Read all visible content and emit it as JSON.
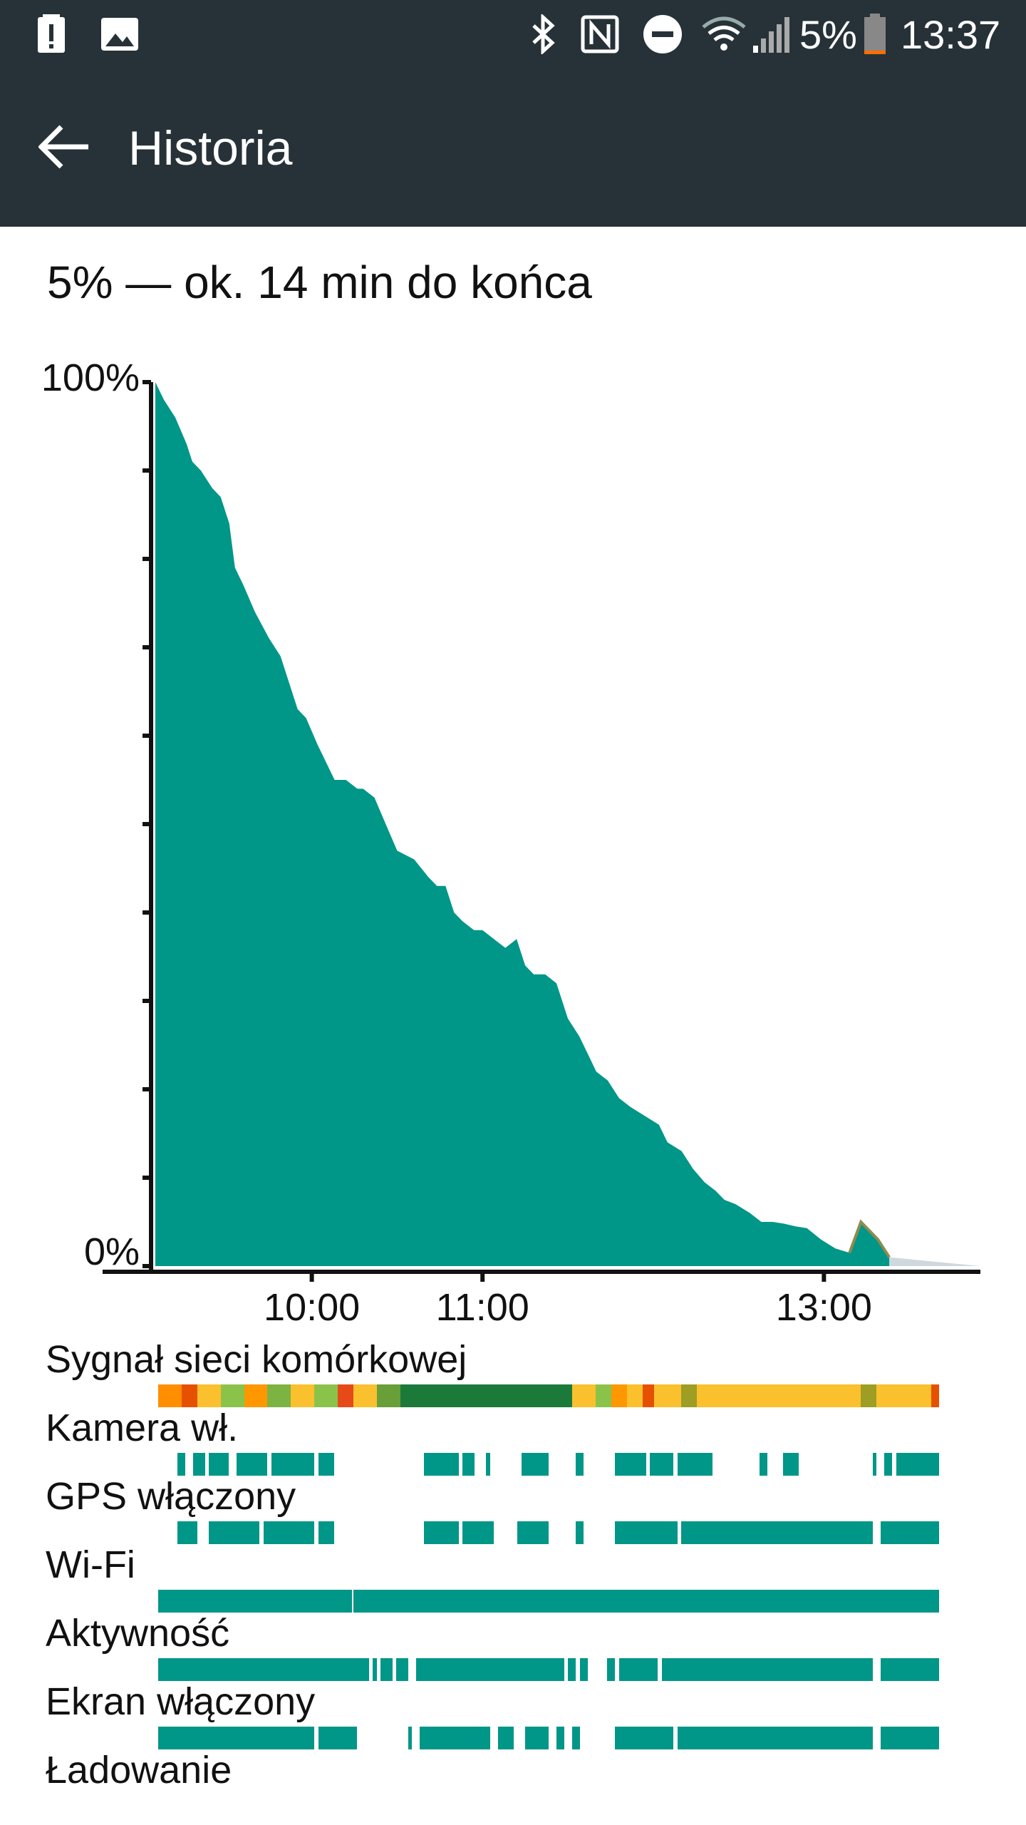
{
  "status_bar": {
    "icons": [
      "alert-icon",
      "image-icon",
      "bluetooth-icon",
      "nfc-icon",
      "do-not-disturb-icon",
      "wifi-icon",
      "cell-signal-icon",
      "battery-icon"
    ],
    "battery_percent": "5%",
    "time": "13:37"
  },
  "app_bar": {
    "title": "Historia",
    "back_icon": "arrow-back-icon",
    "background": "#263238"
  },
  "summary": "5% — ok. 14 min do końca",
  "chart_data": {
    "type": "area",
    "title": "",
    "ylabel": "",
    "xlabel": "",
    "ylim": [
      0,
      100
    ],
    "y_tick_labels": [
      "0%",
      "100%"
    ],
    "x_tick_labels": [
      "10:00",
      "11:00",
      "13:00"
    ],
    "xlim": [
      "09:05",
      "13:55"
    ],
    "series": [
      {
        "x": [
          "09:05",
          "09:08",
          "09:12",
          "09:16",
          "09:18",
          "09:21",
          "09:25",
          "09:28",
          "09:31",
          "09:33",
          "09:36",
          "09:40",
          "09:45",
          "09:49",
          "09:52",
          "09:55",
          "09:58",
          "10:02",
          "10:05",
          "10:08",
          "10:12",
          "10:16",
          "10:18",
          "10:22",
          "10:26",
          "10:30",
          "10:36",
          "10:41",
          "10:44",
          "10:47",
          "10:50",
          "10:53",
          "10:57",
          "11:00",
          "11:04",
          "11:08",
          "11:12",
          "11:15",
          "11:18",
          "11:22",
          "11:26",
          "11:30",
          "11:34",
          "11:37",
          "11:40",
          "11:44",
          "11:48",
          "11:52",
          "11:57",
          "12:02",
          "12:05",
          "12:10",
          "12:14",
          "12:18",
          "12:22",
          "12:25",
          "12:29",
          "12:34",
          "12:38",
          "12:42",
          "12:46",
          "12:50",
          "12:54",
          "12:59",
          "13:04",
          "13:09",
          "13:13",
          "13:16",
          "13:19",
          "13:21",
          "13:23"
        ],
        "y": [
          100,
          98,
          96,
          93,
          91,
          90,
          88,
          87,
          84,
          79,
          77,
          74,
          71,
          69,
          66,
          63,
          62,
          59,
          57,
          55,
          55,
          54,
          54,
          53,
          50,
          47,
          46,
          44,
          43,
          43,
          40,
          39,
          38,
          38,
          37,
          36,
          37,
          34,
          33,
          33,
          32,
          28,
          26,
          24,
          22,
          21,
          19,
          18,
          17,
          16,
          14,
          13,
          11,
          9.5,
          8.5,
          7.5,
          7,
          6,
          5,
          5,
          4.8,
          4.5,
          4.3,
          3,
          2,
          1.5,
          5,
          4,
          3,
          2,
          1
        ]
      }
    ],
    "prediction": {
      "color": "#cfd8dc",
      "end_time": "13:55",
      "end_percent": 0
    },
    "colors": {
      "area": "#009688",
      "recent_outline": "#8d8c4f",
      "axis": "#111111",
      "prediction": "#cfd8dc"
    }
  },
  "tracks": [
    {
      "label": "Sygnał sieci komórkowej",
      "segments": [
        {
          "s": 0,
          "e": 0.03,
          "c": "#ff8f00"
        },
        {
          "s": 0.03,
          "e": 0.05,
          "c": "#e65100"
        },
        {
          "s": 0.05,
          "e": 0.08,
          "c": "#fbc02d"
        },
        {
          "s": 0.08,
          "e": 0.11,
          "c": "#8bc34a"
        },
        {
          "s": 0.11,
          "e": 0.14,
          "c": "#ff9800"
        },
        {
          "s": 0.14,
          "e": 0.17,
          "c": "#7cb342"
        },
        {
          "s": 0.17,
          "e": 0.2,
          "c": "#fbc02d"
        },
        {
          "s": 0.2,
          "e": 0.23,
          "c": "#8bc34a"
        },
        {
          "s": 0.23,
          "e": 0.25,
          "c": "#e64a19"
        },
        {
          "s": 0.25,
          "e": 0.28,
          "c": "#fbc02d"
        },
        {
          "s": 0.28,
          "e": 0.31,
          "c": "#689f38"
        },
        {
          "s": 0.31,
          "e": 0.53,
          "c": "#1b7a3a"
        },
        {
          "s": 0.53,
          "e": 0.56,
          "c": "#fbc02d"
        },
        {
          "s": 0.56,
          "e": 0.58,
          "c": "#8bc34a"
        },
        {
          "s": 0.58,
          "e": 0.6,
          "c": "#ff9800"
        },
        {
          "s": 0.6,
          "e": 0.62,
          "c": "#fbc02d"
        },
        {
          "s": 0.62,
          "e": 0.635,
          "c": "#e65100"
        },
        {
          "s": 0.635,
          "e": 0.67,
          "c": "#fbc02d"
        },
        {
          "s": 0.67,
          "e": 0.69,
          "c": "#9e9d24"
        },
        {
          "s": 0.69,
          "e": 0.9,
          "c": "#fbc02d"
        },
        {
          "s": 0.9,
          "e": 0.92,
          "c": "#9e9d24"
        },
        {
          "s": 0.92,
          "e": 0.99,
          "c": "#fbc02d"
        },
        {
          "s": 0.99,
          "e": 1,
          "c": "#e65100"
        }
      ]
    },
    {
      "label": "Kamera wł.",
      "segments": [
        {
          "s": 0.025,
          "e": 0.035
        },
        {
          "s": 0.045,
          "e": 0.06
        },
        {
          "s": 0.065,
          "e": 0.09
        },
        {
          "s": 0.1,
          "e": 0.14
        },
        {
          "s": 0.145,
          "e": 0.2
        },
        {
          "s": 0.205,
          "e": 0.225
        },
        {
          "s": 0.34,
          "e": 0.385
        },
        {
          "s": 0.39,
          "e": 0.405
        },
        {
          "s": 0.42,
          "e": 0.425
        },
        {
          "s": 0.465,
          "e": 0.5
        },
        {
          "s": 0.535,
          "e": 0.545
        },
        {
          "s": 0.585,
          "e": 0.625
        },
        {
          "s": 0.63,
          "e": 0.66
        },
        {
          "s": 0.665,
          "e": 0.71
        },
        {
          "s": 0.77,
          "e": 0.78
        },
        {
          "s": 0.8,
          "e": 0.82
        },
        {
          "s": 0.915,
          "e": 0.92
        },
        {
          "s": 0.93,
          "e": 0.94
        },
        {
          "s": 0.945,
          "e": 1
        }
      ]
    },
    {
      "label": "GPS włączony",
      "segments": [
        {
          "s": 0.025,
          "e": 0.05
        },
        {
          "s": 0.065,
          "e": 0.13
        },
        {
          "s": 0.135,
          "e": 0.2
        },
        {
          "s": 0.205,
          "e": 0.225
        },
        {
          "s": 0.34,
          "e": 0.385
        },
        {
          "s": 0.39,
          "e": 0.43
        },
        {
          "s": 0.46,
          "e": 0.5
        },
        {
          "s": 0.535,
          "e": 0.545
        },
        {
          "s": 0.585,
          "e": 0.665
        },
        {
          "s": 0.67,
          "e": 0.915
        },
        {
          "s": 0.925,
          "e": 1
        }
      ]
    },
    {
      "label": "Wi-Fi",
      "segments": [
        {
          "s": 0,
          "e": 0.248
        },
        {
          "s": 0.25,
          "e": 1
        }
      ]
    },
    {
      "label": "Aktywność",
      "segments": [
        {
          "s": 0,
          "e": 0.27
        },
        {
          "s": 0.275,
          "e": 0.28
        },
        {
          "s": 0.285,
          "e": 0.3
        },
        {
          "s": 0.305,
          "e": 0.32
        },
        {
          "s": 0.33,
          "e": 0.52
        },
        {
          "s": 0.525,
          "e": 0.535
        },
        {
          "s": 0.54,
          "e": 0.55
        },
        {
          "s": 0.575,
          "e": 0.585
        },
        {
          "s": 0.59,
          "e": 0.64
        },
        {
          "s": 0.645,
          "e": 0.915
        },
        {
          "s": 0.925,
          "e": 1
        }
      ]
    },
    {
      "label": "Ekran włączony",
      "segments": [
        {
          "s": 0,
          "e": 0.2
        },
        {
          "s": 0.205,
          "e": 0.255
        },
        {
          "s": 0.32,
          "e": 0.325
        },
        {
          "s": 0.335,
          "e": 0.425
        },
        {
          "s": 0.435,
          "e": 0.455
        },
        {
          "s": 0.47,
          "e": 0.5
        },
        {
          "s": 0.51,
          "e": 0.52
        },
        {
          "s": 0.53,
          "e": 0.54
        },
        {
          "s": 0.585,
          "e": 0.66
        },
        {
          "s": 0.665,
          "e": 0.915
        },
        {
          "s": 0.925,
          "e": 1
        }
      ]
    },
    {
      "label": "Ładowanie",
      "segments": []
    }
  ]
}
